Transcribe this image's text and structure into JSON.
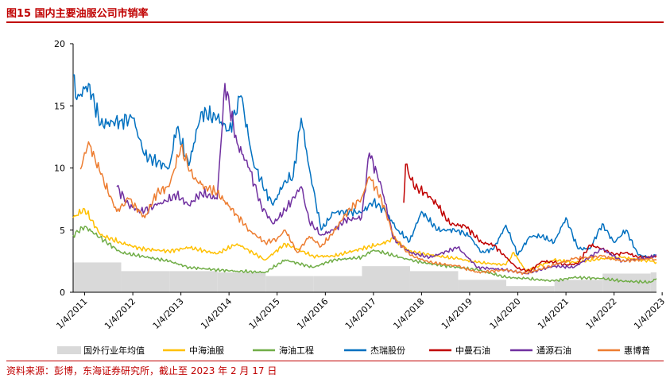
{
  "header": {
    "title": "图15  国内主要油服公司市销率"
  },
  "footer": {
    "source": "资料来源：彭博，东海证券研究所，截止至 2023 年 2 月 17 日"
  },
  "chart_data": {
    "type": "line",
    "title": "国内主要油服公司市销率",
    "xlabel": "",
    "ylabel": "",
    "ylim": [
      0,
      20
    ],
    "yticks": [
      "0",
      "5",
      "10",
      "15",
      "20"
    ],
    "xticks": [
      "1/4/2011",
      "1/4/2012",
      "1/4/2013",
      "1/4/2014",
      "1/4/2015",
      "1/4/2016",
      "1/4/2017",
      "1/4/2018",
      "1/4/2019",
      "1/4/2020",
      "1/4/2021",
      "1/4/2022",
      "1/4/2023"
    ],
    "legend_position": "bottom",
    "grid": false,
    "area": {
      "name": "国外行业年均值",
      "color": "#d9d9d9",
      "years": [
        "2011",
        "2012",
        "2013",
        "2014",
        "2015",
        "2016",
        "2017",
        "2018",
        "2019",
        "2020",
        "2021",
        "2022",
        "2023"
      ],
      "values": [
        2.4,
        1.7,
        1.7,
        1.6,
        1.3,
        1.3,
        2.1,
        1.7,
        1.0,
        0.5,
        1.0,
        1.5,
        1.6
      ]
    },
    "series": [
      {
        "name": "中海油服",
        "color": "#ffc000",
        "points": [
          [
            "2011-01-04",
            6.0
          ],
          [
            "2011-04",
            6.7
          ],
          [
            "2011-08",
            4.6
          ],
          [
            "2012-01",
            4.0
          ],
          [
            "2012-06",
            3.5
          ],
          [
            "2013-01",
            3.3
          ],
          [
            "2013-06",
            3.6
          ],
          [
            "2014-01",
            3.1
          ],
          [
            "2014-06",
            3.9
          ],
          [
            "2015-01",
            2.6
          ],
          [
            "2015-06",
            3.9
          ],
          [
            "2016-01",
            2.9
          ],
          [
            "2016-06",
            2.9
          ],
          [
            "2017-01",
            3.5
          ],
          [
            "2017-06",
            3.9
          ],
          [
            "2017-09",
            4.3
          ],
          [
            "2018-01",
            3.3
          ],
          [
            "2018-06",
            3.0
          ],
          [
            "2019-01",
            2.7
          ],
          [
            "2019-06",
            2.4
          ],
          [
            "2020-01",
            2.2
          ],
          [
            "2020-03",
            3.2
          ],
          [
            "2020-06",
            1.7
          ],
          [
            "2021-01",
            2.6
          ],
          [
            "2021-06",
            2.4
          ],
          [
            "2022-01",
            2.7
          ],
          [
            "2022-06",
            2.8
          ],
          [
            "2023-01",
            2.5
          ],
          [
            "2023-02-17",
            2.4
          ]
        ]
      },
      {
        "name": "海油工程",
        "color": "#70ad47",
        "points": [
          [
            "2011-01-04",
            4.6
          ],
          [
            "2011-04",
            5.3
          ],
          [
            "2012-01",
            3.2
          ],
          [
            "2013-01",
            2.5
          ],
          [
            "2013-06",
            2.0
          ],
          [
            "2014-01",
            1.8
          ],
          [
            "2014-06",
            1.7
          ],
          [
            "2015-01",
            1.6
          ],
          [
            "2015-06",
            2.6
          ],
          [
            "2016-01",
            2.0
          ],
          [
            "2016-06",
            2.6
          ],
          [
            "2017-01",
            2.8
          ],
          [
            "2017-04",
            3.4
          ],
          [
            "2018-01",
            2.6
          ],
          [
            "2018-06",
            2.3
          ],
          [
            "2019-01",
            2.0
          ],
          [
            "2019-06",
            1.8
          ],
          [
            "2020-01",
            1.2
          ],
          [
            "2020-06",
            1.1
          ],
          [
            "2021-01",
            0.9
          ],
          [
            "2021-06",
            1.2
          ],
          [
            "2022-01",
            1.1
          ],
          [
            "2022-06",
            0.9
          ],
          [
            "2023-01",
            0.8
          ],
          [
            "2023-02-17",
            1.1
          ]
        ]
      },
      {
        "name": "杰瑞股份",
        "color": "#0070c0",
        "points": [
          [
            "2011-01-04",
            17.5
          ],
          [
            "2011-02",
            15.5
          ],
          [
            "2011-05",
            16.8
          ],
          [
            "2011-08",
            13.5
          ],
          [
            "2012-01",
            13.8
          ],
          [
            "2012-04",
            14.0
          ],
          [
            "2012-07",
            11.0
          ],
          [
            "2013-01",
            10.0
          ],
          [
            "2013-03",
            13.2
          ],
          [
            "2013-06",
            10.2
          ],
          [
            "2013-09",
            14.5
          ],
          [
            "2014-01",
            14.0
          ],
          [
            "2014-04",
            13.0
          ],
          [
            "2014-07",
            15.8
          ],
          [
            "2014-10",
            10.5
          ],
          [
            "2015-01",
            8.2
          ],
          [
            "2015-03",
            7.0
          ],
          [
            "2015-06",
            9.0
          ],
          [
            "2015-08",
            9.3
          ],
          [
            "2015-10",
            14.0
          ],
          [
            "2015-12",
            10.0
          ],
          [
            "2016-03",
            5.0
          ],
          [
            "2016-06",
            6.4
          ],
          [
            "2016-09",
            6.5
          ],
          [
            "2017-01",
            6.4
          ],
          [
            "2017-04",
            7.3
          ],
          [
            "2017-07",
            6.5
          ],
          [
            "2017-10",
            5.0
          ],
          [
            "2018-01",
            4.1
          ],
          [
            "2018-04",
            6.5
          ],
          [
            "2018-08",
            5.0
          ],
          [
            "2019-01",
            5.0
          ],
          [
            "2019-04",
            4.5
          ],
          [
            "2019-07",
            3.2
          ],
          [
            "2019-10",
            3.5
          ],
          [
            "2020-01",
            5.4
          ],
          [
            "2020-04",
            3.0
          ],
          [
            "2020-07",
            4.5
          ],
          [
            "2020-10",
            4.5
          ],
          [
            "2021-01",
            4.0
          ],
          [
            "2021-04",
            6.0
          ],
          [
            "2021-07",
            3.5
          ],
          [
            "2021-10",
            3.5
          ],
          [
            "2022-01",
            5.5
          ],
          [
            "2022-04",
            4.0
          ],
          [
            "2022-07",
            5.0
          ],
          [
            "2022-10",
            3.0
          ],
          [
            "2023-01",
            2.8
          ],
          [
            "2023-02-17",
            3.0
          ]
        ]
      },
      {
        "name": "中曼石油",
        "color": "#c00000",
        "points": [
          [
            "2017-11-17",
            7.2
          ],
          [
            "2017-12",
            10.3
          ],
          [
            "2018-02",
            8.5
          ],
          [
            "2018-05",
            8.0
          ],
          [
            "2018-08",
            7.0
          ],
          [
            "2018-11",
            5.5
          ],
          [
            "2019-03",
            5.3
          ],
          [
            "2019-07",
            4.0
          ],
          [
            "2019-10",
            3.8
          ],
          [
            "2020-01",
            2.8
          ],
          [
            "2020-04",
            1.9
          ],
          [
            "2020-07",
            1.7
          ],
          [
            "2020-10",
            2.5
          ],
          [
            "2021-01",
            2.4
          ],
          [
            "2021-04",
            2.2
          ],
          [
            "2021-07",
            2.3
          ],
          [
            "2021-10",
            3.8
          ],
          [
            "2022-01",
            3.5
          ],
          [
            "2022-04",
            3.0
          ],
          [
            "2022-07",
            3.2
          ],
          [
            "2022-10",
            2.8
          ],
          [
            "2023-01",
            2.8
          ],
          [
            "2023-02-17",
            2.9
          ]
        ]
      },
      {
        "name": "通源石油",
        "color": "#7030a0",
        "points": [
          [
            "2011-12",
            8.5
          ],
          [
            "2012-03",
            7.0
          ],
          [
            "2012-06",
            6.5
          ],
          [
            "2012-10",
            7.0
          ],
          [
            "2013-03",
            7.8
          ],
          [
            "2013-06",
            7.0
          ],
          [
            "2013-09",
            8.0
          ],
          [
            "2014-01",
            7.5
          ],
          [
            "2014-03",
            16.8
          ],
          [
            "2014-06",
            12.0
          ],
          [
            "2014-09",
            10.0
          ],
          [
            "2014-12",
            7.0
          ],
          [
            "2015-03",
            5.5
          ],
          [
            "2015-06",
            6.6
          ],
          [
            "2015-10",
            8.5
          ],
          [
            "2015-12",
            5.7
          ],
          [
            "2016-03",
            4.6
          ],
          [
            "2016-06",
            5.0
          ],
          [
            "2016-09",
            5.8
          ],
          [
            "2017-01",
            6.0
          ],
          [
            "2017-03",
            11.2
          ],
          [
            "2017-06",
            8.5
          ],
          [
            "2017-09",
            4.3
          ],
          [
            "2018-01",
            3.2
          ],
          [
            "2018-06",
            2.8
          ],
          [
            "2019-01",
            3.6
          ],
          [
            "2019-06",
            2.0
          ],
          [
            "2020-01",
            1.8
          ],
          [
            "2020-06",
            1.5
          ],
          [
            "2021-01",
            2.1
          ],
          [
            "2021-06",
            2.0
          ],
          [
            "2022-01",
            3.5
          ],
          [
            "2022-06",
            2.5
          ],
          [
            "2023-01",
            2.8
          ],
          [
            "2023-02-17",
            3.0
          ]
        ]
      },
      {
        "name": "惠博普",
        "color": "#ed7d31",
        "points": [
          [
            "2011-03",
            9.9
          ],
          [
            "2011-05",
            12.1
          ],
          [
            "2011-08",
            9.5
          ],
          [
            "2011-12",
            6.5
          ],
          [
            "2012-03",
            7.5
          ],
          [
            "2012-07",
            6.0
          ],
          [
            "2012-10",
            8.0
          ],
          [
            "2013-01",
            8.5
          ],
          [
            "2013-04",
            11.7
          ],
          [
            "2013-07",
            9.2
          ],
          [
            "2013-10",
            8.5
          ],
          [
            "2014-01",
            8.0
          ],
          [
            "2014-06",
            6.2
          ],
          [
            "2014-09",
            5.0
          ],
          [
            "2015-01",
            4.0
          ],
          [
            "2015-04",
            4.3
          ],
          [
            "2015-06",
            5.0
          ],
          [
            "2015-09",
            3.2
          ],
          [
            "2015-12",
            4.5
          ],
          [
            "2016-03",
            3.7
          ],
          [
            "2016-06",
            4.8
          ],
          [
            "2016-09",
            6.3
          ],
          [
            "2017-01",
            7.6
          ],
          [
            "2017-03",
            9.3
          ],
          [
            "2017-06",
            7.5
          ],
          [
            "2017-09",
            4.5
          ],
          [
            "2018-01",
            3.0
          ],
          [
            "2018-06",
            2.4
          ],
          [
            "2019-01",
            2.1
          ],
          [
            "2019-06",
            1.6
          ],
          [
            "2020-01",
            1.8
          ],
          [
            "2020-06",
            1.5
          ],
          [
            "2021-01",
            2.2
          ],
          [
            "2021-06",
            2.7
          ],
          [
            "2022-01",
            2.9
          ],
          [
            "2022-06",
            2.5
          ],
          [
            "2023-01",
            2.7
          ],
          [
            "2023-02-17",
            2.6
          ]
        ]
      }
    ]
  }
}
